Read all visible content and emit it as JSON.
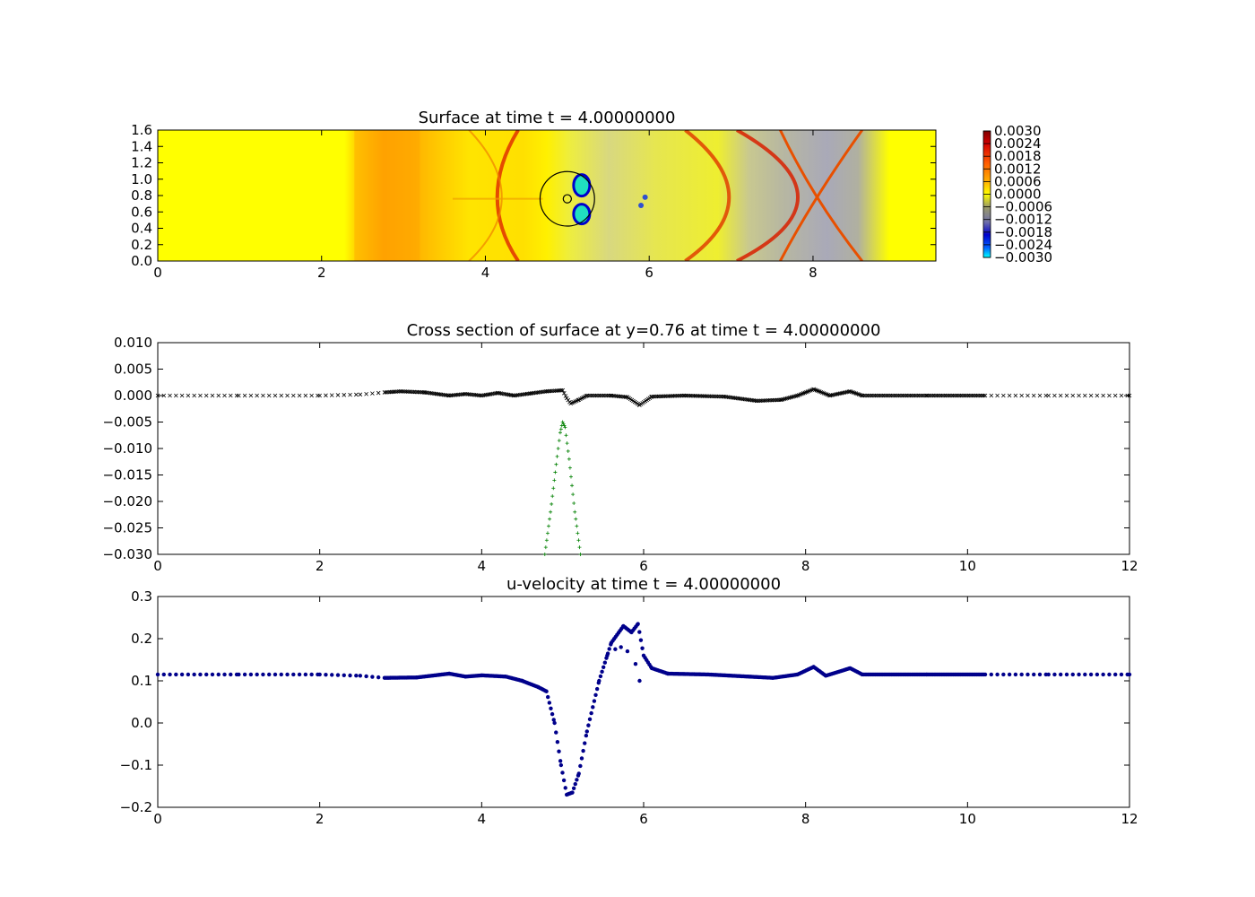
{
  "chart_data": [
    {
      "type": "heatmap",
      "title": "Surface at time t =     4.00000000",
      "xlim": [
        0,
        9.5
      ],
      "ylim": [
        0,
        1.6
      ],
      "xticks": [
        "0",
        "2",
        "4",
        "6",
        "8"
      ],
      "yticks": [
        "0.0",
        "0.2",
        "0.4",
        "0.6",
        "0.8",
        "1.0",
        "1.2",
        "1.4",
        "1.6"
      ],
      "colorbar": {
        "ticks": [
          "0.0030",
          "0.0024",
          "0.0018",
          "0.0012",
          "0.0006",
          "0.0000",
          "−0.0006",
          "−0.0012",
          "−0.0018",
          "−0.0024",
          "−0.0030"
        ],
        "range": [
          -0.003,
          0.003
        ]
      },
      "features": {
        "bump_center": [
          5.0,
          0.76
        ],
        "bump_circle_radius": 0.35,
        "bump_inner_radius": 0.05,
        "arc_fronts_x": [
          4.0,
          7.4,
          8.45
        ],
        "warm_band_x": [
          2.4,
          3.2
        ]
      }
    },
    {
      "type": "scatter",
      "title": "Cross section of surface at y=0.76 at time t =     4.00000000",
      "xlim": [
        0,
        12
      ],
      "ylim": [
        -0.03,
        0.01
      ],
      "xticks": [
        "0",
        "2",
        "4",
        "6",
        "8",
        "10",
        "12"
      ],
      "yticks": [
        "0.010",
        "0.005",
        "0.000",
        "−0.005",
        "−0.010",
        "−0.015",
        "−0.020",
        "−0.025",
        "−0.030"
      ],
      "series": [
        {
          "marker": "x",
          "color": "#000000",
          "points": [
            [
              0,
              0.0
            ],
            [
              1,
              0.0
            ],
            [
              2,
              0.0
            ],
            [
              2.5,
              0.0002
            ],
            [
              2.8,
              0.0006
            ],
            [
              3.0,
              0.0008
            ],
            [
              3.3,
              0.0006
            ],
            [
              3.6,
              0.0
            ],
            [
              3.8,
              0.0003
            ],
            [
              4.0,
              0.0
            ],
            [
              4.2,
              0.0005
            ],
            [
              4.4,
              0.0
            ],
            [
              4.6,
              0.0004
            ],
            [
              4.8,
              0.0008
            ],
            [
              5.0,
              0.001
            ],
            [
              5.05,
              -0.0005
            ],
            [
              5.1,
              -0.0015
            ],
            [
              5.2,
              -0.0008
            ],
            [
              5.3,
              0.0
            ],
            [
              5.6,
              0.0
            ],
            [
              5.8,
              -0.0003
            ],
            [
              5.95,
              -0.0018
            ],
            [
              6.1,
              -0.0002
            ],
            [
              6.5,
              0.0
            ],
            [
              7.0,
              -0.0002
            ],
            [
              7.4,
              -0.001
            ],
            [
              7.7,
              -0.0008
            ],
            [
              7.9,
              0.0
            ],
            [
              8.1,
              0.0012
            ],
            [
              8.3,
              0.0
            ],
            [
              8.55,
              0.0008
            ],
            [
              8.7,
              0.0
            ],
            [
              9.5,
              0.0
            ],
            [
              10.2,
              0.0
            ],
            [
              11,
              0.0
            ],
            [
              12,
              0.0
            ]
          ]
        },
        {
          "marker": "+",
          "color": "#008000",
          "points": [
            [
              4.78,
              -0.03
            ],
            [
              4.85,
              -0.022
            ],
            [
              4.92,
              -0.013
            ],
            [
              4.97,
              -0.007
            ],
            [
              5.0,
              -0.005
            ],
            [
              5.03,
              -0.006
            ],
            [
              5.08,
              -0.012
            ],
            [
              5.15,
              -0.022
            ],
            [
              5.22,
              -0.03
            ]
          ]
        }
      ]
    },
    {
      "type": "scatter",
      "title": "u-velocity at time t =     4.00000000",
      "xlim": [
        0,
        12
      ],
      "ylim": [
        -0.2,
        0.3
      ],
      "xticks": [
        "0",
        "2",
        "4",
        "6",
        "8",
        "10",
        "12"
      ],
      "yticks": [
        "0.3",
        "0.2",
        "0.1",
        "0.0",
        "−0.1",
        "−0.2"
      ],
      "series": [
        {
          "marker": "o",
          "color": "#00008b",
          "points": [
            [
              0,
              0.115
            ],
            [
              1,
              0.115
            ],
            [
              2,
              0.115
            ],
            [
              2.5,
              0.112
            ],
            [
              2.8,
              0.107
            ],
            [
              3.2,
              0.108
            ],
            [
              3.6,
              0.117
            ],
            [
              3.8,
              0.11
            ],
            [
              4.0,
              0.113
            ],
            [
              4.3,
              0.11
            ],
            [
              4.5,
              0.1
            ],
            [
              4.7,
              0.085
            ],
            [
              4.8,
              0.075
            ],
            [
              4.9,
              0.0
            ],
            [
              4.98,
              -0.1
            ],
            [
              5.05,
              -0.17
            ],
            [
              5.12,
              -0.165
            ],
            [
              5.2,
              -0.12
            ],
            [
              5.3,
              -0.02
            ],
            [
              5.45,
              0.1
            ],
            [
              5.6,
              0.19
            ],
            [
              5.75,
              0.23
            ],
            [
              5.85,
              0.215
            ],
            [
              5.93,
              0.235
            ],
            [
              6.0,
              0.16
            ],
            [
              6.1,
              0.13
            ],
            [
              6.3,
              0.117
            ],
            [
              6.8,
              0.115
            ],
            [
              7.3,
              0.11
            ],
            [
              7.6,
              0.107
            ],
            [
              7.9,
              0.115
            ],
            [
              8.1,
              0.133
            ],
            [
              8.25,
              0.112
            ],
            [
              8.55,
              0.13
            ],
            [
              8.7,
              0.115
            ],
            [
              9.5,
              0.115
            ],
            [
              10.2,
              0.115
            ],
            [
              11,
              0.115
            ],
            [
              12,
              0.115
            ]
          ]
        }
      ]
    }
  ]
}
